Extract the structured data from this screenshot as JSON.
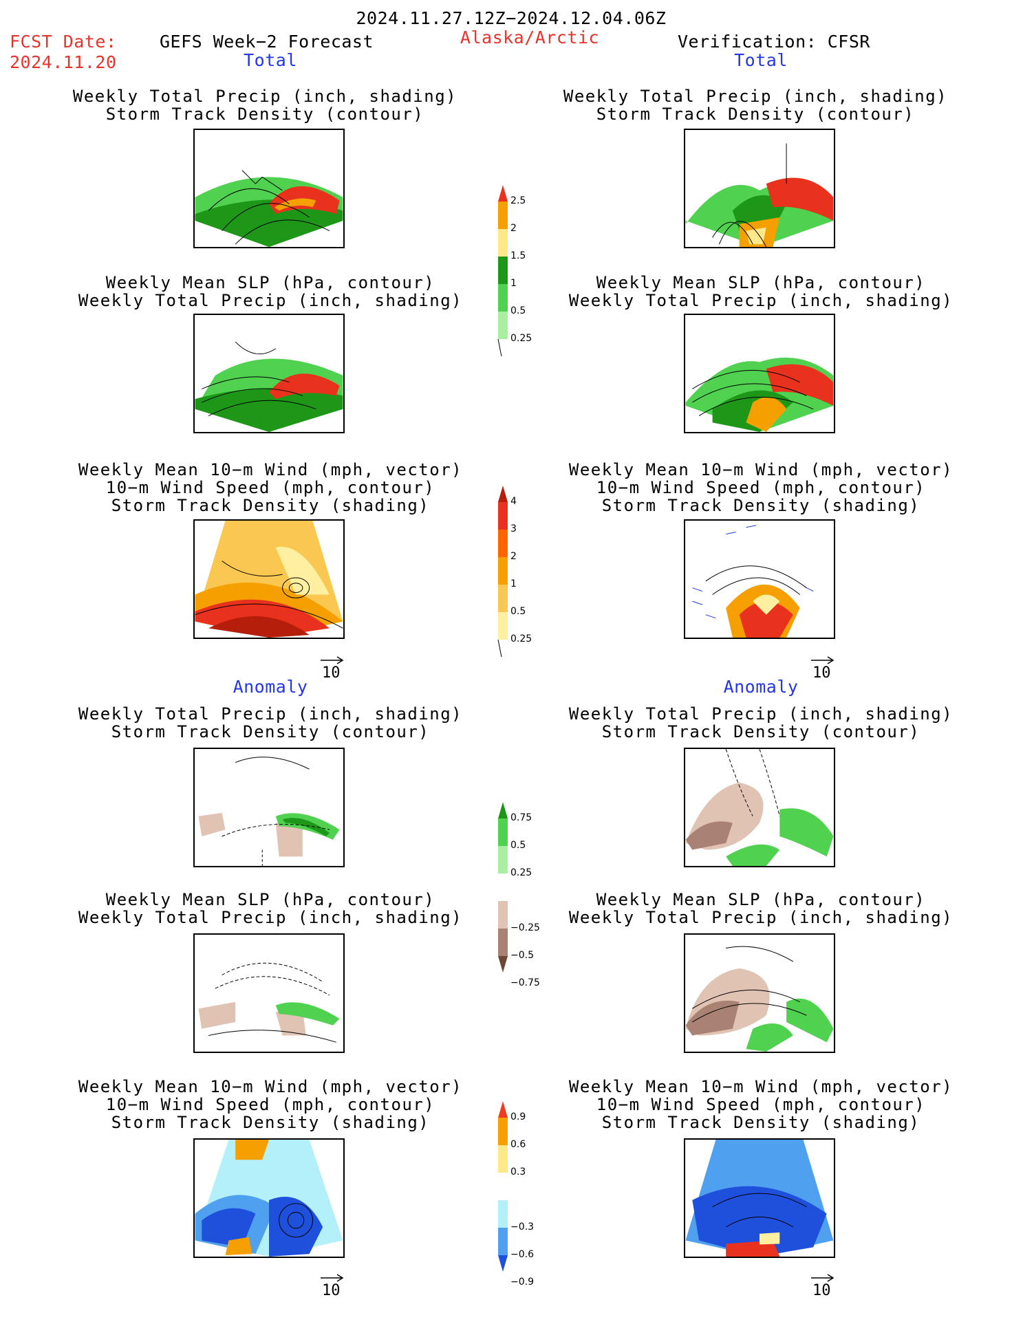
{
  "header": {
    "date_range": "2024.11.27.12Z−2024.12.04.06Z",
    "fcst_date_label": "FCST Date:",
    "fcst_date_value": "2024.11.20",
    "forecast_name": "GEFS Week−2 Forecast",
    "region": "Alaska/Arctic",
    "verification": "Verification: CFSR"
  },
  "sections": {
    "total": "Total",
    "anomaly": "Anomaly"
  },
  "panel_titles": {
    "precip_storm": "Weekly Total Precip (inch, shading)\nStorm Track Density (contour)",
    "slp_precip": "Weekly Mean SLP (hPa, contour)\nWeekly Total Precip (inch, shading)",
    "wind_storm": "Weekly Mean 10−m Wind (mph, vector)\n10−m Wind Speed (mph, contour)\nStorm Track Density (shading)"
  },
  "vector_reference": "10",
  "colorbars": {
    "precip_total": {
      "labels": [
        "2.5",
        "2",
        "1.5",
        "1",
        "0.5",
        "0.25"
      ],
      "colors": [
        "#e8321e",
        "#f5a000",
        "#fee88a",
        "#1e9618",
        "#50d250",
        "#a8f0a0"
      ]
    },
    "storm_total": {
      "labels": [
        "4",
        "3",
        "2",
        "1",
        "0.5",
        "0.25"
      ],
      "colors": [
        "#b41e0a",
        "#e8321e",
        "#ff6400",
        "#f5a000",
        "#fac850",
        "#fef0a0"
      ]
    },
    "precip_anom": {
      "labels": [
        "0.75",
        "0.5",
        "0.25",
        "−0.25",
        "−0.5",
        "−0.75"
      ],
      "colors": [
        "#1e9618",
        "#50d250",
        "#a8f0a0",
        "#ffffff",
        "#e1c3b4",
        "#aa8273",
        "#6e4637"
      ]
    },
    "storm_anom": {
      "labels": [
        "0.9",
        "0.6",
        "0.3",
        "−0.3",
        "−0.6",
        "−0.9"
      ],
      "colors": [
        "#f03c1e",
        "#f5a000",
        "#fee88a",
        "#ffffff",
        "#b4f0fa",
        "#50a0f0",
        "#1e50dc"
      ]
    }
  }
}
